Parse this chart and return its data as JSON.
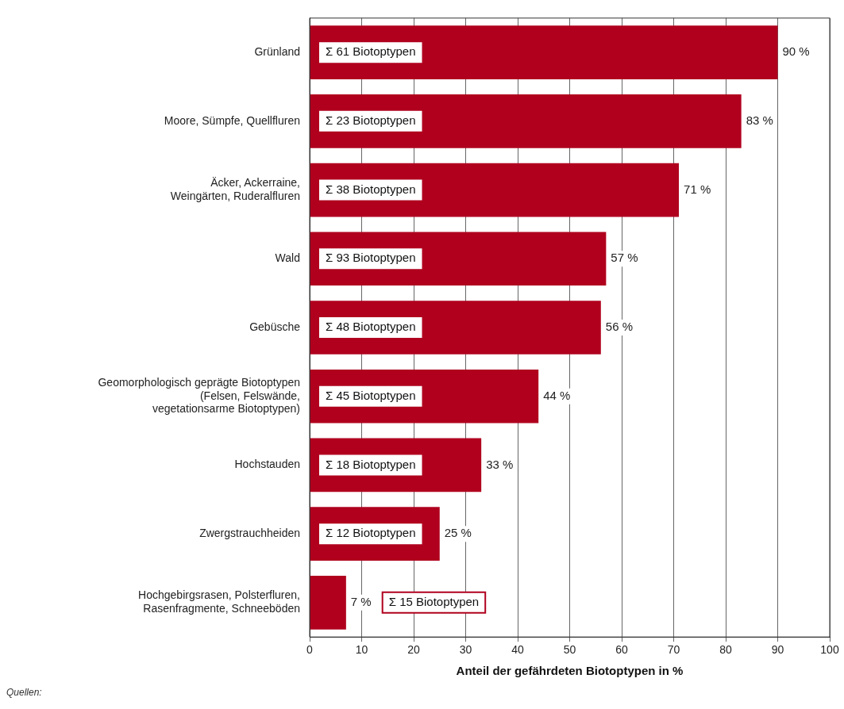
{
  "chart_data": {
    "type": "bar",
    "orientation": "horizontal",
    "xlabel": "Anteil der gefährdeten Biotoptypen in %",
    "categories": [
      "Grünland",
      "Moore, Sümpfe, Quellfluren",
      "Äcker, Ackerraine,\nWeingärten, Ruderalfluren",
      "Wald",
      "Gebüsche",
      "Geomorphologisch geprägte Biotoptypen\n(Felsen, Felswände,\nvegetationsarme Biotoptypen)",
      "Hochstauden",
      "Zwergstrauchheiden",
      "Hochgebirgsrasen, Polsterfluren,\nRasenfragmente, Schneeböden"
    ],
    "values": [
      90,
      83,
      71,
      57,
      56,
      44,
      33,
      25,
      7
    ],
    "value_labels": [
      "90 %",
      "83 %",
      "71 %",
      "57 %",
      "56 %",
      "44 %",
      "33 %",
      "25 %",
      "7 %"
    ],
    "color": "#b0001e",
    "xlim": [
      0,
      100
    ],
    "xticks": [
      0,
      10,
      20,
      30,
      40,
      50,
      60,
      70,
      80,
      90,
      100
    ],
    "grid": "x",
    "annotations": [
      "Σ 61 Biotoptypen",
      "Σ 23 Biotoptypen",
      "Σ 38 Biotoptypen",
      "Σ 93 Biotoptypen",
      "Σ 48 Biotoptypen",
      "Σ 45 Biotoptypen",
      "Σ 18 Biotoptypen",
      "Σ 12 Biotoptypen",
      "Σ 15 Biotoptypen",
      "Quellen:"
    ]
  }
}
